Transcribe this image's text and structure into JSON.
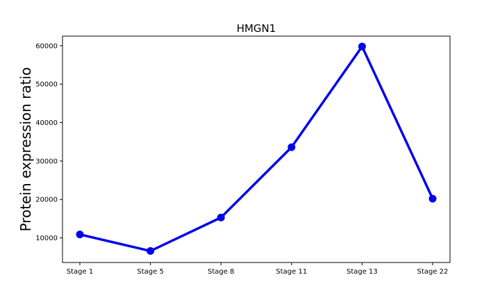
{
  "chart_data": {
    "type": "line",
    "title": "HMGN1",
    "xlabel": "",
    "ylabel": "Protein expression ratio",
    "categories": [
      "Stage 1",
      "Stage 5",
      "Stage 8",
      "Stage 11",
      "Stage 13",
      "Stage 22"
    ],
    "series": [
      {
        "values": [
          10900,
          6600,
          15300,
          33600,
          59800,
          20200
        ]
      }
    ],
    "ylim": [
      3600,
      62500
    ],
    "yticks": [
      10000,
      20000,
      30000,
      40000,
      50000,
      60000
    ],
    "grid": false,
    "legend": "none",
    "colors": {
      "line": "#0000ee",
      "marker": "#0000ee",
      "axes": "#000000",
      "background": "#ffffff"
    }
  }
}
